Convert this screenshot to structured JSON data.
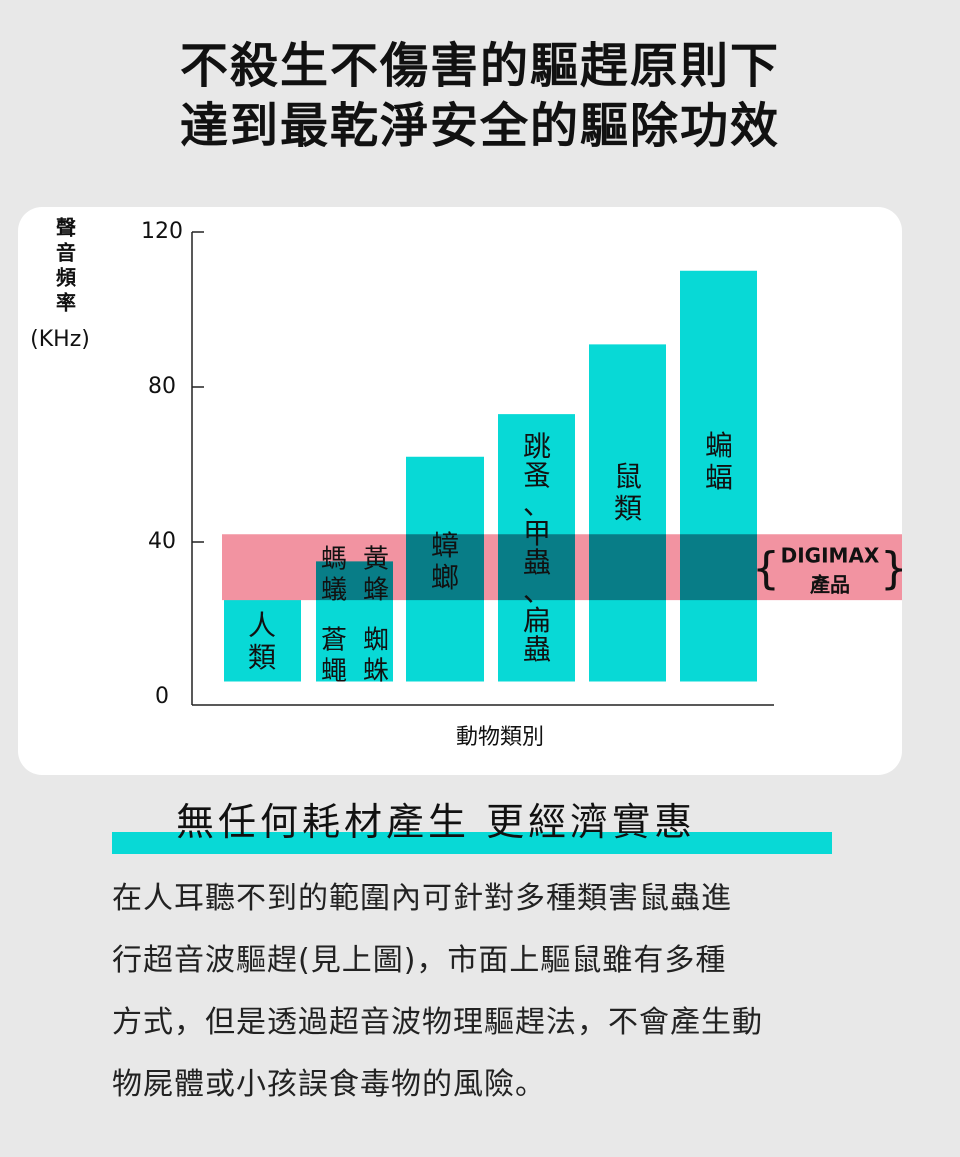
{
  "title": {
    "line1": "不殺生不傷害的驅趕原則下",
    "line2": "達到最乾淨安全的驅除功效"
  },
  "chart_data": {
    "type": "bar",
    "ylabel": [
      "聲",
      "音",
      "頻",
      "率",
      "(KHz)"
    ],
    "xlabel": "動物類別",
    "ylim": [
      0,
      120
    ],
    "yticks": [
      0,
      40,
      80,
      120
    ],
    "categories": [
      {
        "label": [
          "人",
          "類"
        ],
        "range": [
          4,
          25
        ]
      },
      {
        "label": [
          [
            "蒼",
            "蠅"
          ],
          [
            "蜘",
            "蛛"
          ]
        ],
        "range": [
          4,
          32
        ]
      },
      {
        "label": [
          [
            "螞",
            "蟻"
          ],
          [
            "黃",
            "蜂"
          ]
        ],
        "range": [
          25,
          35
        ]
      },
      {
        "label": [
          "蟑",
          "螂"
        ],
        "range": [
          4,
          62
        ]
      },
      {
        "label": [
          "跳",
          "蚤",
          "、",
          "甲",
          "蟲",
          "、",
          "扁",
          "蟲"
        ],
        "range": [
          4,
          73
        ]
      },
      {
        "label": [
          "鼠",
          "類"
        ],
        "range": [
          4,
          91
        ]
      },
      {
        "label": [
          "蝙",
          "蝠"
        ],
        "range": [
          4,
          110
        ]
      }
    ],
    "highlight_band": {
      "range": [
        25,
        42
      ],
      "label": [
        "DIGIMAX",
        "產品"
      ],
      "color": "#f08090"
    },
    "bar_color": "#08d9d6",
    "grid": false
  },
  "sub_heading": "無任何耗材產生 更經濟實惠",
  "body": [
    "在人耳聽不到的範圍內可針對多種類害鼠蟲進",
    "行超音波驅趕(見上圖)，市面上驅鼠雖有多種",
    "方式，但是透過超音波物理驅趕法，不會產生動",
    "物屍體或小孩誤食毒物的風險。"
  ],
  "colors": {
    "accent": "#08d9d6",
    "band": "#f08090",
    "band_label": "#111111"
  }
}
